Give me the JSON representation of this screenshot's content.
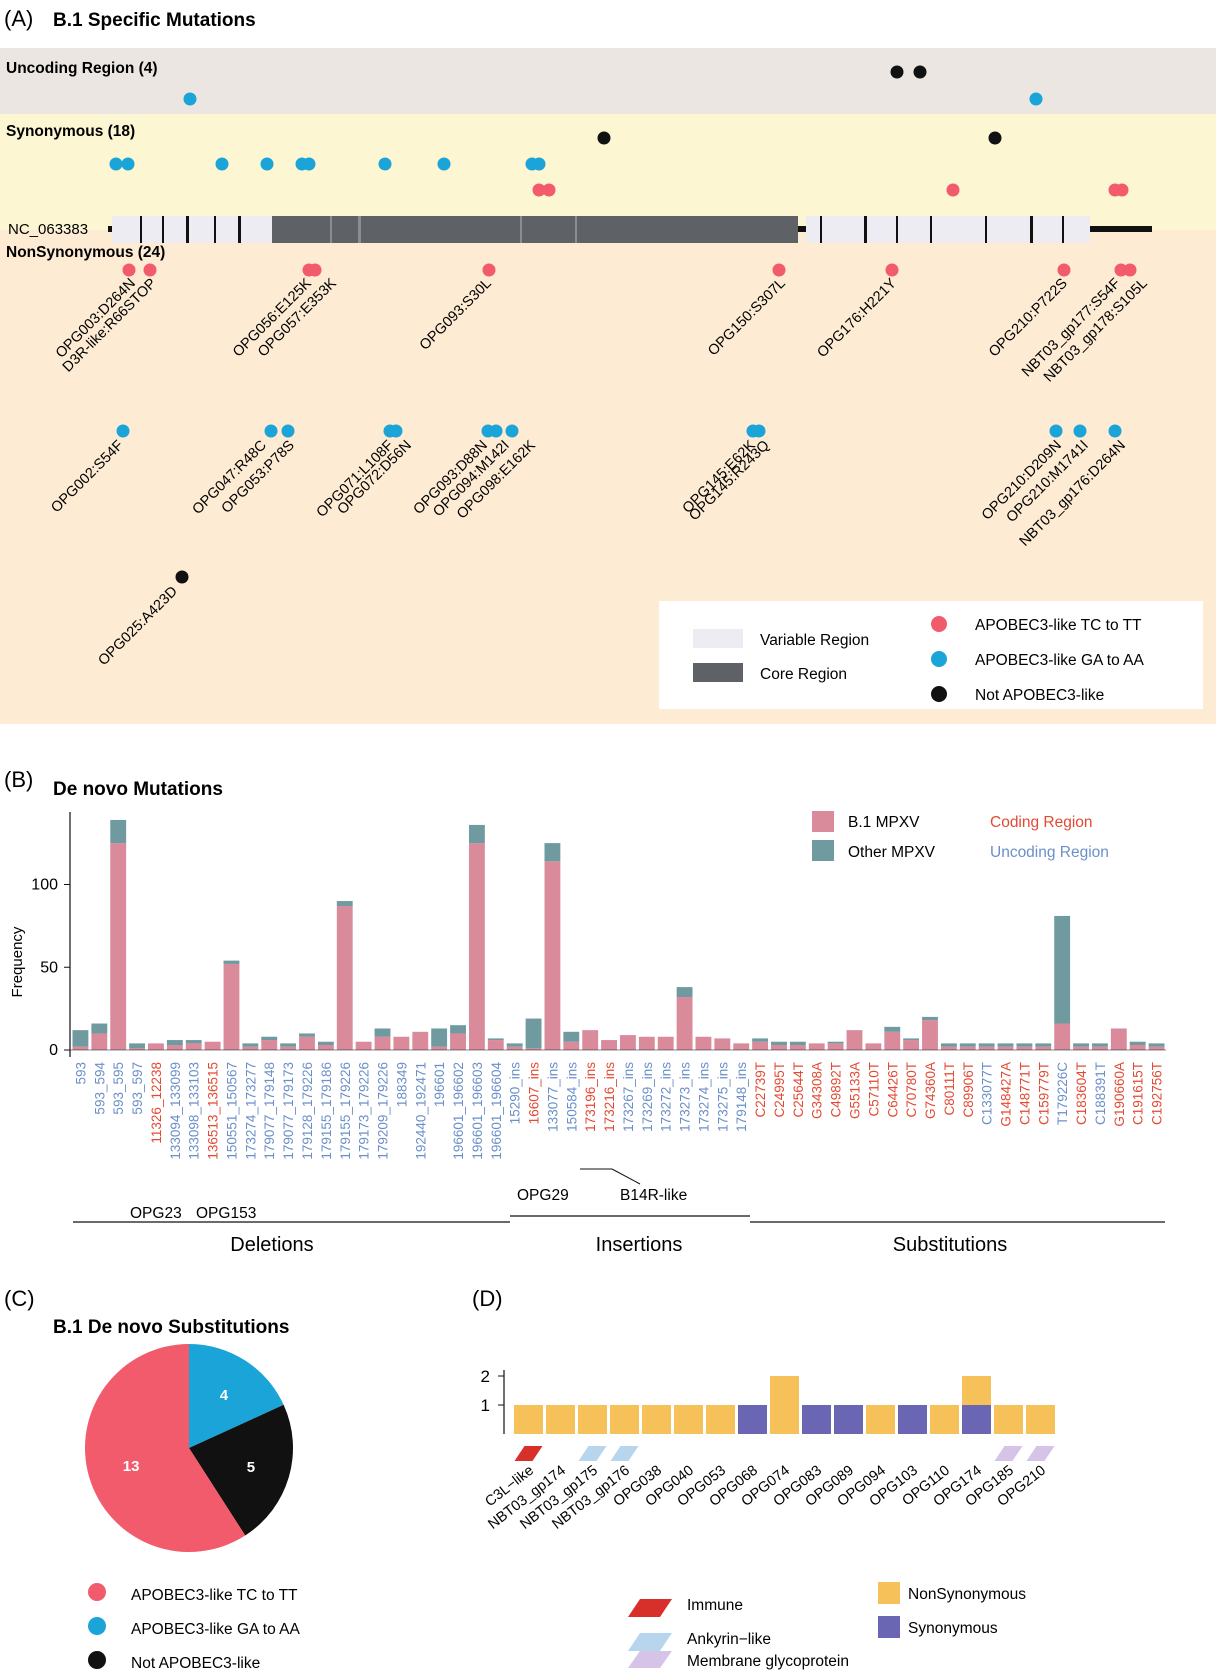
{
  "panel_labels": {
    "a": "(A)",
    "b": "(B)",
    "c": "(C)",
    "d": "(D)"
  },
  "colors": {
    "tc_tt": "#f15b6c",
    "ga_aa": "#1ba4d8",
    "not_apobec": "#111111",
    "b1_bar": "#d98a9b",
    "other_bar": "#6f9aa0",
    "coding_text": "#e34a33",
    "uncoding_text": "#6b8fc9",
    "nonsyn": "#f7c15a",
    "syn": "#6a66b4",
    "immune": "#d7302a",
    "ankyrin": "#b7d6ee",
    "membrane": "#d6c3e8",
    "variable": "#ececf2",
    "core": "#5e6266",
    "band_uncoding": "#ece6e2",
    "band_syn": "#fdf6d2",
    "band_nonsyn": "#fdebd3"
  },
  "panel_a": {
    "title": "B.1 Specific Mutations",
    "bands": {
      "uncoding": "Uncoding Region (4)",
      "synonymous": "Synonymous (18)",
      "nonsynonymous": "NonSynonymous (24)"
    },
    "genome_label": "NC_063383",
    "labels_top": [
      "OPG003:D264N",
      "D3R-like:R66STOP",
      "OPG056:E125K",
      "OPG057:E353K",
      "OPG093:S30L",
      "OPG150:S307L",
      "OPG176:H221Y",
      "OPG210:P722S",
      "NBT03_gp177:S54F",
      "NBT03_gp178:S105L"
    ],
    "labels_mid": [
      "OPG002:S54F",
      "OPG047:R48C",
      "OPG053:P78S",
      "OPG071:L108F",
      "OPG072:D56N",
      "OPG093:D88N",
      "OPG094:M142I",
      "OPG098:E162K",
      "OPG145:E62K",
      "OPG145:R243Q",
      "OPG210:D209N",
      "OPG210:M1741I",
      "NBT03_gp176:D264N"
    ],
    "labels_low": [
      "OPG025:A423D"
    ],
    "legend": {
      "variable": "Variable Region",
      "core": "Core Region",
      "tc": "APOBEC3-like TC to TT",
      "ga": "APOBEC3-like GA to AA",
      "not": "Not APOBEC3-like"
    }
  },
  "panel_c": {
    "title": "B.1 De novo Substitutions"
  },
  "legend_c": {
    "tc": "APOBEC3-like TC to TT",
    "ga": "APOBEC3-like GA to AA",
    "not": "Not APOBEC3-like"
  },
  "legend_d": {
    "immune": "Immune",
    "ankyrin": "Ankyrin−like",
    "membrane": "Membrane glycoprotein",
    "nonsyn": "NonSynonymous",
    "syn": "Synonymous"
  },
  "chart_data": [
    {
      "type": "bar",
      "title": "De novo Mutations",
      "ylabel": "Frequency",
      "ylim": [
        0,
        140
      ],
      "yticks": [
        0,
        50,
        100
      ],
      "stacked": true,
      "legend": [
        "B.1 MPXV",
        "Other MPXV"
      ],
      "region_legend": {
        "coding": "Coding Region",
        "uncoding": "Uncoding Region"
      },
      "categories": [
        "593",
        "593_594",
        "593_595",
        "593_597",
        "11326_12238",
        "133094_133099",
        "133098_133103",
        "136513_136515",
        "150551_150567",
        "173274_173277",
        "179077_179148",
        "179077_179173",
        "179128_179226",
        "179155_179186",
        "179155_179226",
        "179173_179226",
        "179209_179226",
        "188349",
        "192440_192471",
        "196601",
        "196601_196602",
        "196601_196603",
        "196601_196604",
        "15290_ins",
        "16607_ins",
        "133077_ins",
        "150584_ins",
        "173196_ins",
        "173216_ins",
        "173267_ins",
        "173269_ins",
        "173272_ins",
        "173273_ins",
        "173274_ins",
        "173275_ins",
        "179148_ins",
        "C22739T",
        "C24995T",
        "C25644T",
        "G34308A",
        "C49892T",
        "G55133A",
        "C57110T",
        "C64426T",
        "C70780T",
        "G74360A",
        "C80111T",
        "C89906T",
        "C133077T",
        "G148427A",
        "C148771T",
        "C159779T",
        "T179226C",
        "C183604T",
        "C188391T",
        "G190660A",
        "C191615T",
        "C192756T"
      ],
      "category_region": [
        "U",
        "U",
        "U",
        "U",
        "C",
        "U",
        "U",
        "C",
        "U",
        "U",
        "U",
        "U",
        "U",
        "U",
        "U",
        "U",
        "U",
        "U",
        "U",
        "U",
        "U",
        "U",
        "U",
        "U",
        "C",
        "U",
        "U",
        "C",
        "C",
        "U",
        "U",
        "U",
        "U",
        "U",
        "U",
        "U",
        "C",
        "C",
        "C",
        "C",
        "C",
        "C",
        "C",
        "C",
        "C",
        "C",
        "C",
        "C",
        "U",
        "C",
        "C",
        "C",
        "U",
        "C",
        "U",
        "C",
        "C",
        "C"
      ],
      "series": [
        {
          "name": "B.1 MPXV",
          "values": [
            2,
            10,
            125,
            1,
            4,
            3,
            4,
            5,
            52,
            2,
            6,
            2,
            8,
            3,
            87,
            5,
            8,
            8,
            11,
            2,
            10,
            125,
            6,
            2,
            1,
            114,
            5,
            12,
            6,
            9,
            8,
            8,
            32,
            8,
            7,
            4,
            5,
            3,
            3,
            4,
            4,
            12,
            4,
            11,
            6,
            18,
            2,
            2,
            2,
            2,
            2,
            2,
            16,
            2,
            2,
            13,
            3,
            2
          ]
        },
        {
          "name": "Other MPXV",
          "values": [
            10,
            6,
            14,
            3,
            0,
            3,
            2,
            0,
            2,
            2,
            2,
            2,
            2,
            2,
            3,
            0,
            5,
            0,
            0,
            11,
            5,
            11,
            1,
            2,
            18,
            11,
            6,
            0,
            0,
            0,
            0,
            0,
            6,
            0,
            0,
            0,
            2,
            2,
            2,
            0,
            1,
            0,
            0,
            3,
            1,
            2,
            2,
            2,
            2,
            2,
            2,
            2,
            65,
            2,
            2,
            0,
            2,
            2
          ]
        }
      ],
      "gene_labels": [
        "OPG23",
        "OPG153",
        "OPG29",
        "B14R-like"
      ],
      "groups": [
        "Deletions",
        "Insertions",
        "Substitutions"
      ]
    },
    {
      "type": "pie",
      "title": "B.1 De novo Substitutions",
      "labels": [
        "APOBEC3-like TC to TT",
        "APOBEC3-like GA to AA",
        "Not APOBEC3-like"
      ],
      "values": [
        13,
        4,
        5
      ]
    },
    {
      "type": "bar",
      "stacked": true,
      "ylim": [
        0,
        2
      ],
      "yticks": [
        1,
        2
      ],
      "categories": [
        "C3L−like",
        "NBT03_gp174",
        "NBT03_gp175",
        "NBT03_gp176",
        "OPG038",
        "OPG040",
        "OPG053",
        "OPG068",
        "OPG074",
        "OPG083",
        "OPG089",
        "OPG094",
        "OPG103",
        "OPG110",
        "OPG174",
        "OPG185",
        "OPG210"
      ],
      "series": [
        {
          "name": "NonSynonymous",
          "values": [
            1,
            1,
            1,
            1,
            1,
            1,
            1,
            0,
            2,
            0,
            0,
            1,
            0,
            1,
            1,
            1,
            1
          ]
        },
        {
          "name": "Synonymous",
          "values": [
            0,
            0,
            0,
            0,
            0,
            0,
            0,
            1,
            0,
            1,
            1,
            0,
            1,
            0,
            1,
            0,
            0
          ]
        }
      ],
      "gene_class": [
        "Immune",
        "",
        "Ankyrin−like",
        "Ankyrin−like",
        "",
        "",
        "",
        "",
        "",
        "",
        "",
        "",
        "",
        "",
        "",
        "Membrane glycoprotein",
        "Membrane glycoprotein"
      ],
      "legend": [
        "Immune",
        "Ankyrin−like",
        "Membrane glycoprotein",
        "NonSynonymous",
        "Synonymous"
      ]
    }
  ]
}
